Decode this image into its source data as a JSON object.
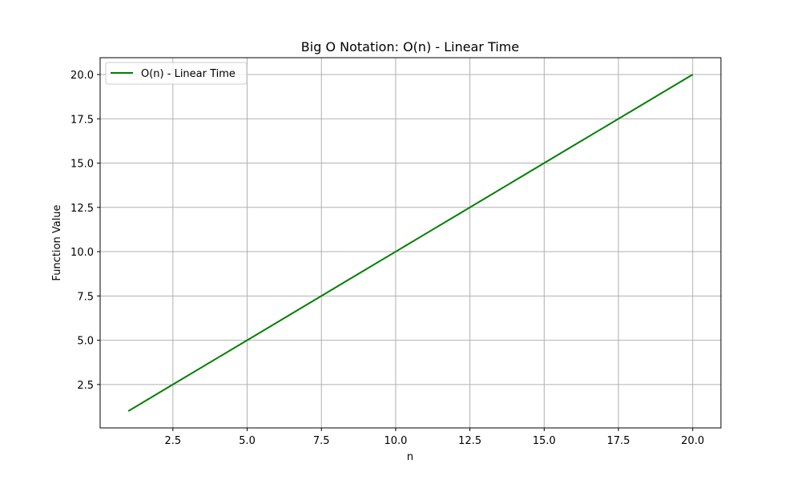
{
  "colors": {
    "series_line": "#008000",
    "grid": "#b0b0b0",
    "axes": "#000000",
    "background": "#ffffff"
  },
  "chart_data": {
    "type": "line",
    "title": "Big O Notation: O(n) - Linear Time",
    "xlabel": "n",
    "ylabel": "Function Value",
    "xlim": [
      0.05,
      20.95
    ],
    "ylim": [
      0.05,
      20.95
    ],
    "grid": true,
    "legend_position": "upper-left",
    "x_ticks": [
      2.5,
      5.0,
      7.5,
      10.0,
      12.5,
      15.0,
      17.5,
      20.0
    ],
    "x_tick_labels": [
      "2.5",
      "5.0",
      "7.5",
      "10.0",
      "12.5",
      "15.0",
      "17.5",
      "20.0"
    ],
    "y_ticks": [
      2.5,
      5.0,
      7.5,
      10.0,
      12.5,
      15.0,
      17.5,
      20.0
    ],
    "y_tick_labels": [
      "2.5",
      "5.0",
      "7.5",
      "10.0",
      "12.5",
      "15.0",
      "17.5",
      "20.0"
    ],
    "series": [
      {
        "name": "O(n) - Linear Time",
        "color": "#008000",
        "x": [
          1,
          2,
          3,
          4,
          5,
          6,
          7,
          8,
          9,
          10,
          11,
          12,
          13,
          14,
          15,
          16,
          17,
          18,
          19,
          20
        ],
        "y": [
          1,
          2,
          3,
          4,
          5,
          6,
          7,
          8,
          9,
          10,
          11,
          12,
          13,
          14,
          15,
          16,
          17,
          18,
          19,
          20
        ]
      }
    ]
  }
}
